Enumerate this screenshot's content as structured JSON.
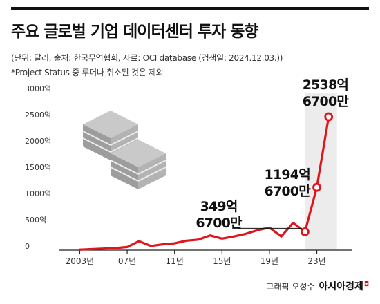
{
  "header": {
    "title": "주요 글로벌 기업 데이터센터 투자 동향",
    "source": "(단위: 달러, 출처: 한국무역협회, 자료: OCI database (검색일: 2024.12.03.))",
    "note": "*Project Status 중 루머나 취소된 것은 제외"
  },
  "chart_data": {
    "type": "line",
    "title": "주요 글로벌 기업 데이터센터 투자 동향",
    "x_ticks": [
      "2003년",
      "07년",
      "11년",
      "15년",
      "19년",
      "23년"
    ],
    "x_tick_values": [
      2003,
      2007,
      2011,
      2015,
      2019,
      2023
    ],
    "y_ticks": [
      "0",
      "500억",
      "1000억",
      "1500억",
      "2000억",
      "2500억",
      "3000억"
    ],
    "y_tick_values": [
      0,
      500,
      1000,
      1500,
      2000,
      2500,
      3000
    ],
    "xlim": [
      2001.4,
      2026
    ],
    "ylim": [
      0,
      3000
    ],
    "grid": false,
    "series": [
      {
        "color": "#e0141b",
        "x": [
          2003,
          2004,
          2005,
          2006,
          2007,
          2008,
          2009,
          2010,
          2011,
          2012,
          2013,
          2014,
          2015,
          2016,
          2017,
          2018,
          2019,
          2020,
          2021,
          2022,
          2023,
          2024
        ],
        "y": [
          10,
          20,
          30,
          40,
          60,
          170,
          80,
          110,
          130,
          180,
          200,
          280,
          220,
          260,
          310,
          380,
          430,
          260,
          520,
          349.67,
          1194.67,
          2538.67
        ]
      }
    ],
    "highlight_shade": [
      2022,
      2024
    ],
    "annotations": [
      {
        "x": 2022,
        "y": 349.67,
        "line1": "349억",
        "line2": "6700만"
      },
      {
        "x": 2023,
        "y": 1194.67,
        "line1": "1194억",
        "line2": "6700만"
      },
      {
        "x": 2024,
        "y": 2538.67,
        "line1": "2538억",
        "line2": "6700만"
      }
    ]
  },
  "footer": {
    "credit": "그래픽 오성수",
    "brand": "아시아경제"
  },
  "colors": {
    "line": "#e0141b",
    "shade": "#ececec",
    "axis": "#222222",
    "tick_text": "#333333"
  }
}
